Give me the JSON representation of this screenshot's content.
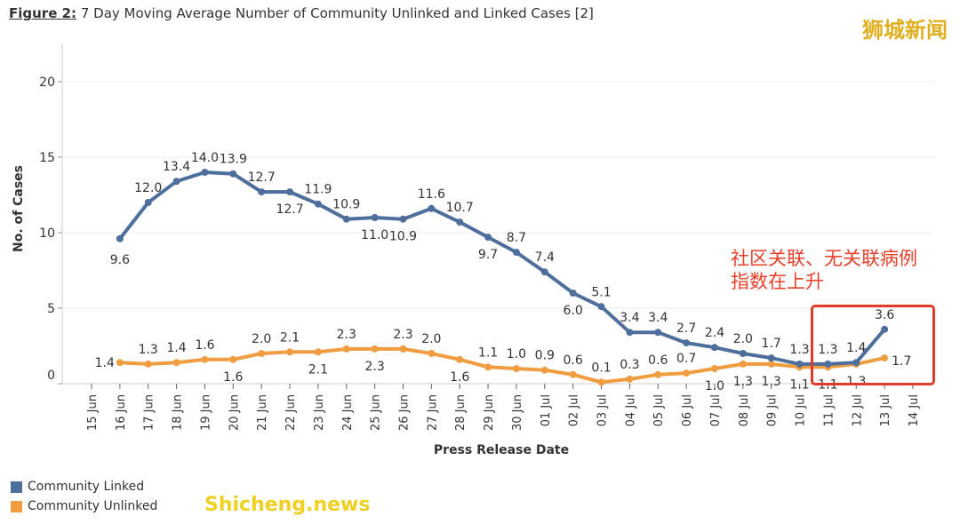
{
  "title_prefix": "Figure 2:",
  "title_text": "7 Day Moving Average Number of Community Unlinked and Linked Cases [2]",
  "watermark_cn": "狮城新闻",
  "watermark_en": "Shicheng.news",
  "annotation_line1": "社区关联、无关联病例",
  "annotation_line2": "指数在上升",
  "colors": {
    "linked": "#4e6f9c",
    "unlinked": "#f09c41",
    "highlight": "#e03a2a"
  },
  "chart_data": {
    "type": "line",
    "title": "7 Day Moving Average Number of Community Unlinked and Linked Cases [2]",
    "xlabel": "Press Release Date",
    "ylabel": "No. of Cases",
    "ylim": [
      0,
      20
    ],
    "yticks": [
      0,
      5,
      10,
      15,
      20
    ],
    "categories": [
      "15 Jun",
      "16 Jun",
      "17 Jun",
      "18 Jun",
      "19 Jun",
      "20 Jun",
      "21 Jun",
      "22 Jun",
      "23 Jun",
      "24 Jun",
      "25 Jun",
      "26 Jun",
      "27 Jun",
      "28 Jun",
      "29 Jun",
      "30 Jun",
      "01 Jul",
      "02 Jul",
      "03 Jul",
      "04 Jul",
      "05 Jul",
      "06 Jul",
      "07 Jul",
      "08 Jul",
      "09 Jul",
      "10 Jul",
      "11 Jul",
      "12 Jul",
      "13 Jul",
      "14 Jul"
    ],
    "legend": "bottom-left",
    "series": [
      {
        "name": "Community Linked",
        "values": [
          null,
          9.6,
          12.0,
          13.4,
          14.0,
          13.9,
          12.7,
          12.7,
          11.9,
          10.9,
          11.0,
          10.9,
          11.6,
          10.7,
          9.7,
          8.7,
          7.4,
          6.0,
          5.1,
          3.4,
          3.4,
          2.7,
          2.4,
          2.0,
          1.7,
          1.3,
          1.3,
          1.4,
          3.6,
          null
        ]
      },
      {
        "name": "Community Unlinked",
        "values": [
          null,
          1.4,
          1.3,
          1.4,
          1.6,
          1.6,
          2.0,
          2.1,
          2.1,
          2.3,
          2.3,
          2.3,
          2.0,
          1.6,
          1.1,
          1.0,
          0.9,
          0.6,
          0.1,
          0.3,
          0.6,
          0.7,
          1.0,
          1.3,
          1.3,
          1.1,
          1.1,
          1.3,
          1.7,
          null
        ]
      }
    ]
  }
}
